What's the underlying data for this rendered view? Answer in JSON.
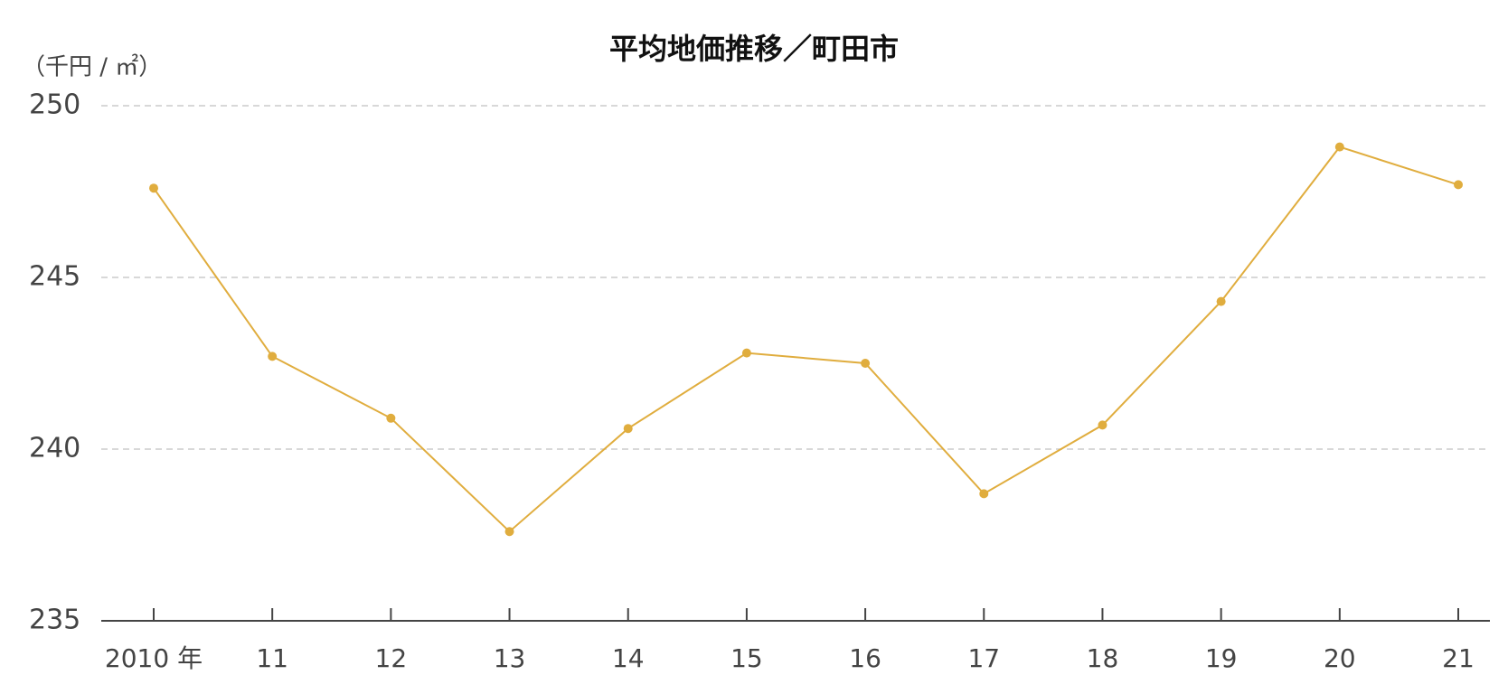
{
  "chart_data": {
    "type": "line",
    "title": "平均地価推移／町田市",
    "y_label": "（千円 / ㎡）",
    "categories": [
      "2010 年",
      "11",
      "12",
      "13",
      "14",
      "15",
      "16",
      "17",
      "18",
      "19",
      "20",
      "21"
    ],
    "series": [
      {
        "name": "町田市",
        "color": "#e0ad3e",
        "values": [
          247.6,
          242.7,
          240.9,
          237.6,
          240.6,
          242.8,
          242.5,
          238.7,
          240.7,
          244.3,
          248.8,
          247.7
        ]
      }
    ],
    "ylim": [
      235,
      250
    ],
    "yticks": [
      235,
      240,
      245,
      250
    ],
    "grid": true
  }
}
